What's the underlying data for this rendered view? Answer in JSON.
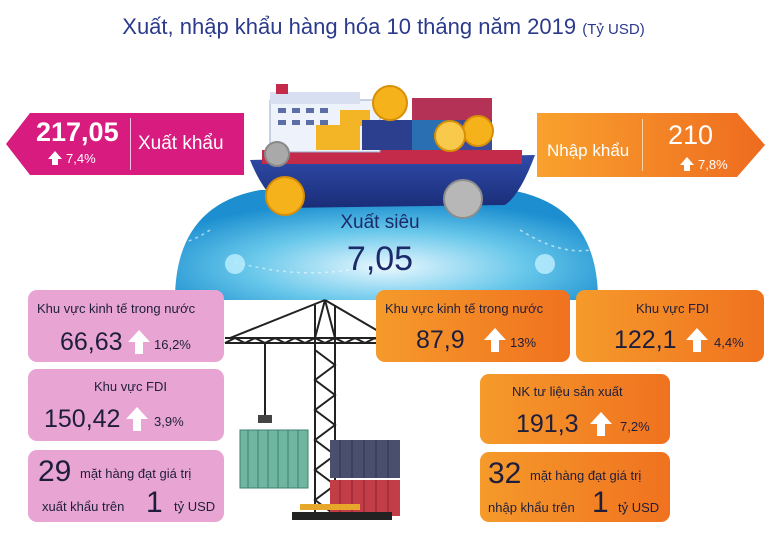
{
  "title": {
    "main": "Xuất, nhập khẩu hàng hóa 10 tháng năm 2019",
    "unit": "(Tỷ USD)"
  },
  "export": {
    "value": "217,05",
    "growth": "7,4%",
    "label": "Xuất khẩu"
  },
  "import": {
    "label": "Nhập khẩu",
    "value": "210",
    "growth": "7,8%"
  },
  "surplus": {
    "label": "Xuất siêu",
    "value": "7,05"
  },
  "export_breakdown": {
    "domestic": {
      "title": "Khu vực kinh tế trong nước",
      "value": "66,63",
      "growth": "16,2%"
    },
    "fdi": {
      "title": "Khu vực FDI",
      "value": "150,42",
      "growth": "3,9%"
    },
    "items": {
      "count": "29",
      "text1": "mặt hàng đạt giá trị",
      "text2": "xuất khẩu trên",
      "threshold": "1",
      "unit": "tỷ USD"
    }
  },
  "import_breakdown": {
    "domestic": {
      "title": "Khu vực kinh tế trong nước",
      "value": "87,9",
      "growth": "13%"
    },
    "fdi": {
      "title": "Khu vực FDI",
      "value": "122,1",
      "growth": "4,4%"
    },
    "capital_goods": {
      "title": "NK tư liệu sản xuất",
      "value": "191,3",
      "growth": "7,2%"
    },
    "items": {
      "count": "32",
      "text1": "mặt hàng đạt giá trị",
      "text2": "nhập khẩu trên",
      "threshold": "1",
      "unit": "tỷ USD"
    }
  },
  "colors": {
    "title": "#2b3a8c",
    "export": "#d81b7e",
    "import": "#f07a1f",
    "pink_box": "#e8a5d3",
    "orange_box": "#f28a25"
  }
}
